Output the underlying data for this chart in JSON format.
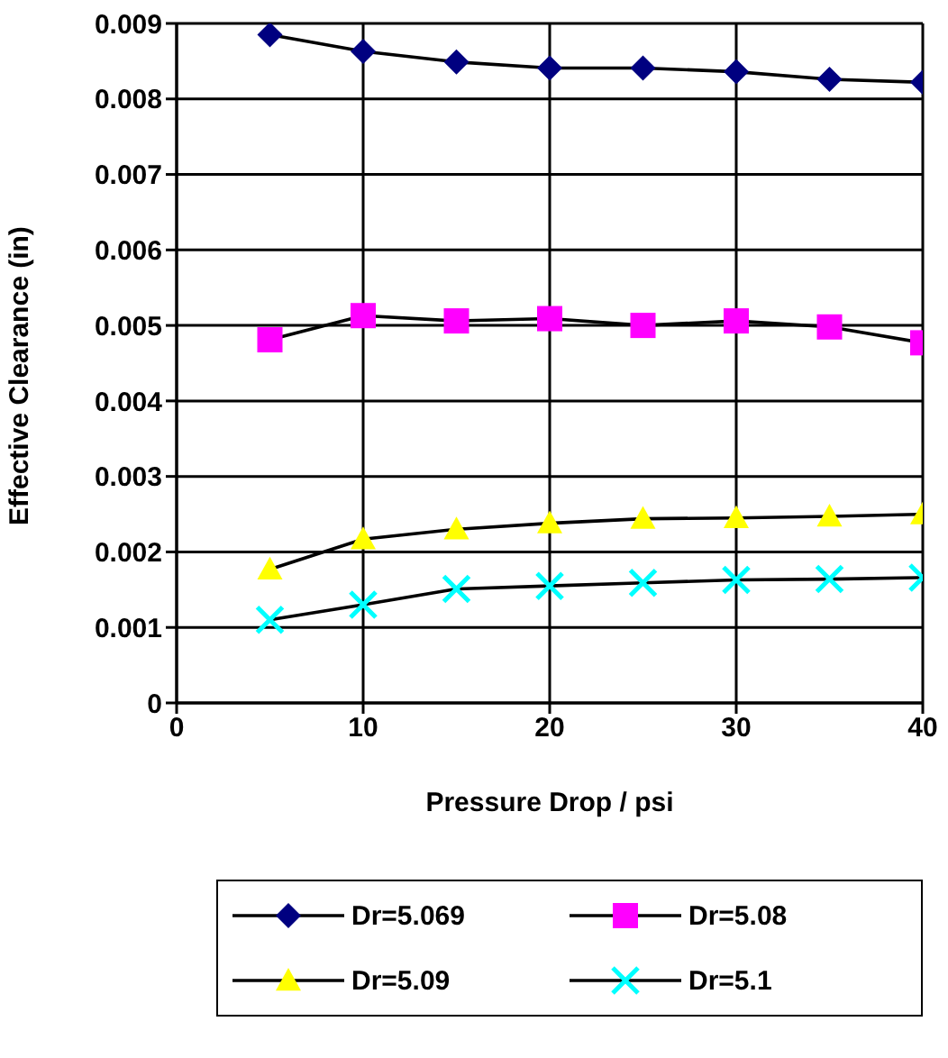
{
  "chart_data": {
    "type": "line",
    "xlabel": "Pressure Drop / psi",
    "ylabel": "Effective Clearance (in)",
    "x": [
      5,
      10,
      15,
      20,
      25,
      30,
      35,
      40
    ],
    "series": [
      {
        "name": "Dr=5.069",
        "color": "#000080",
        "marker": "diamond",
        "values": [
          0.00885,
          0.00863,
          0.00849,
          0.00841,
          0.00841,
          0.00836,
          0.00826,
          0.00822
        ]
      },
      {
        "name": "Dr=5.08",
        "color": "#ff00ff",
        "marker": "square",
        "values": [
          0.00481,
          0.00513,
          0.00506,
          0.00509,
          0.005,
          0.00506,
          0.00498,
          0.00477
        ]
      },
      {
        "name": "Dr=5.09",
        "color": "#ffff00",
        "marker": "triangle",
        "values": [
          0.00177,
          0.00217,
          0.0023,
          0.00238,
          0.00244,
          0.00245,
          0.00247,
          0.0025
        ]
      },
      {
        "name": "Dr=5.1",
        "color": "#00ffff",
        "marker": "cross",
        "values": [
          0.0011,
          0.0013,
          0.00151,
          0.00155,
          0.00159,
          0.00163,
          0.00164,
          0.00166
        ]
      }
    ],
    "xlim": [
      0,
      40
    ],
    "xticks": [
      0,
      10,
      20,
      30,
      40
    ],
    "ylim": [
      0,
      0.009
    ],
    "yticks": [
      0,
      0.001,
      0.002,
      0.003,
      0.004,
      0.005,
      0.006,
      0.007,
      0.008,
      0.009
    ],
    "grid": true,
    "legend": "bottom"
  }
}
